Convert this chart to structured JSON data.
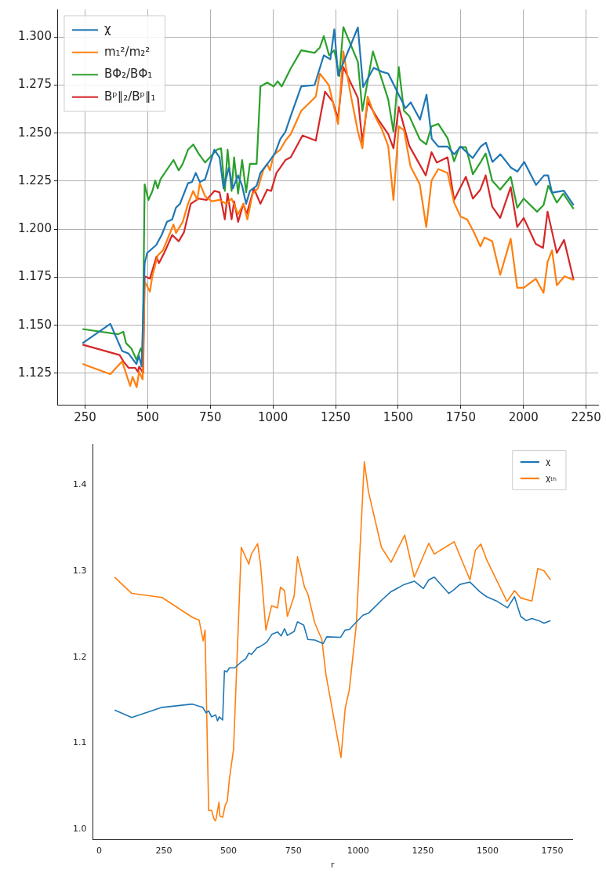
{
  "chart_data": [
    {
      "type": "line",
      "xlim": [
        142,
        2298
      ],
      "ylim": [
        1.1086,
        1.3144
      ],
      "xticks": [
        250,
        500,
        750,
        1000,
        1250,
        1500,
        1750,
        2000,
        2250
      ],
      "yticks": [
        1.125,
        {
          "value": 1.15,
          "label": "1.150"
        },
        1.175,
        {
          "value": 1.2,
          "label": "1.200"
        },
        1.225,
        {
          "value": 1.25,
          "label": "1.250"
        },
        1.275,
        {
          "value": 1.3,
          "label": "1.300"
        }
      ],
      "grid": true,
      "legend": "top left",
      "series": [
        {
          "name": "χ",
          "color": "#1f77b4",
          "x": [
            240,
            351,
            398,
            424,
            455,
            465,
            476,
            488,
            498,
            534,
            556,
            577,
            598,
            613,
            629,
            661,
            677,
            692,
            708,
            729,
            766,
            787,
            803,
            824,
            840,
            861,
            877,
            893,
            908,
            935,
            950,
            982,
            1008,
            1029,
            1050,
            1071,
            1113,
            1166,
            1203,
            1229,
            1245,
            1260,
            1292,
            1339,
            1360,
            1402,
            1434,
            1460,
            1529,
            1550,
            1587,
            1613,
            1634,
            1660,
            1697,
            1723,
            1750,
            1797,
            1829,
            1850,
            1876,
            1908,
            1950,
            1976,
            2003,
            2050,
            2082,
            2098,
            2114,
            2161,
            2200
          ],
          "values": [
            1.1406,
            1.1507,
            1.1366,
            1.1352,
            1.1298,
            1.134,
            1.1285,
            1.1823,
            1.1876,
            1.1917,
            1.197,
            1.2038,
            1.2051,
            1.2112,
            1.2132,
            1.2239,
            1.2246,
            1.2293,
            1.2246,
            1.2259,
            1.2414,
            1.2374,
            1.2212,
            1.232,
            1.2212,
            1.228,
            1.2226,
            1.2132,
            1.2199,
            1.2226,
            1.2293,
            1.2347,
            1.2394,
            1.2468,
            1.2508,
            1.2589,
            1.2743,
            1.275,
            1.2905,
            1.2884,
            1.304,
            1.28,
            1.29,
            1.305,
            1.274,
            1.284,
            1.282,
            1.281,
            1.263,
            1.266,
            1.257,
            1.27,
            1.247,
            1.243,
            1.243,
            1.239,
            1.243,
            1.237,
            1.243,
            1.245,
            1.235,
            1.239,
            1.232,
            1.23,
            1.235,
            1.223,
            1.228,
            1.228,
            1.219,
            1.22,
            1.2125
          ]
        },
        {
          "name": "m₁²/m₂²",
          "color": "#ff7f0e",
          "x": [
            240,
            351,
            398,
            430,
            440,
            456,
            466,
            480,
            488,
            509,
            519,
            540,
            561,
            603,
            613,
            640,
            661,
            682,
            698,
            708,
            729,
            756,
            787,
            814,
            835,
            861,
            882,
            898,
            919,
            940,
            961,
            977,
            988,
            1003,
            1029,
            1050,
            1071,
            1113,
            1171,
            1187,
            1223,
            1260,
            1281,
            1307,
            1339,
            1357,
            1378,
            1407,
            1434,
            1460,
            1481,
            1502,
            1523,
            1549,
            1586,
            1612,
            1633,
            1660,
            1697,
            1723,
            1749,
            1775,
            1802,
            1828,
            1844,
            1875,
            1907,
            1949,
            1975,
            2001,
            2049,
            2080,
            2096,
            2114,
            2133,
            2164,
            2200
          ],
          "values": [
            1.1298,
            1.1245,
            1.1312,
            1.1184,
            1.1231,
            1.1177,
            1.1258,
            1.1218,
            1.1728,
            1.1675,
            1.1757,
            1.1863,
            1.189,
            1.2024,
            1.198,
            1.2038,
            1.2132,
            1.2199,
            1.2152,
            1.2239,
            1.2172,
            1.2145,
            1.2152,
            1.2132,
            1.2159,
            1.2078,
            1.2132,
            1.2051,
            1.2185,
            1.2212,
            1.2306,
            1.234,
            1.2306,
            1.2387,
            1.2414,
            1.2461,
            1.2495,
            1.2616,
            1.269,
            1.281,
            1.275,
            1.2548,
            1.2925,
            1.2723,
            1.2508,
            1.2421,
            1.269,
            1.2589,
            1.2522,
            1.2434,
            1.2152,
            1.2535,
            1.2515,
            1.2327,
            1.2233,
            1.2011,
            1.2253,
            1.2313,
            1.2293,
            1.2138,
            1.2065,
            1.2051,
            1.1984,
            1.191,
            1.1957,
            1.1937,
            1.1762,
            1.195,
            1.1695,
            1.1695,
            1.1742,
            1.1668,
            1.1829,
            1.189,
            1.1708,
            1.1755,
            1.1735
          ]
        },
        {
          "name": "BΦ₂/BΦ₁",
          "color": "#2ca02c",
          "x": [
            240,
            382,
            403,
            414,
            435,
            456,
            472,
            480,
            488,
            503,
            519,
            530,
            540,
            551,
            603,
            624,
            640,
            661,
            682,
            703,
            729,
            777,
            793,
            808,
            819,
            835,
            845,
            861,
            877,
            893,
            908,
            935,
            950,
            977,
            1003,
            1019,
            1035,
            1071,
            1113,
            1166,
            1187,
            1203,
            1224,
            1245,
            1265,
            1281,
            1339,
            1357,
            1399,
            1460,
            1481,
            1502,
            1523,
            1544,
            1586,
            1612,
            1633,
            1660,
            1697,
            1723,
            1744,
            1770,
            1798,
            1828,
            1849,
            1875,
            1907,
            1949,
            1975,
            2001,
            2054,
            2080,
            2099,
            2133,
            2159,
            2200
          ],
          "values": [
            1.148,
            1.1453,
            1.1466,
            1.1406,
            1.1379,
            1.1319,
            1.1379,
            1.1352,
            1.2233,
            1.2152,
            1.2199,
            1.2253,
            1.2212,
            1.2259,
            1.236,
            1.2306,
            1.234,
            1.2414,
            1.2441,
            1.2394,
            1.2347,
            1.2414,
            1.2421,
            1.2199,
            1.2414,
            1.2199,
            1.2374,
            1.2185,
            1.236,
            1.2192,
            1.234,
            1.234,
            1.2743,
            1.2763,
            1.2743,
            1.277,
            1.2743,
            1.2837,
            1.2931,
            1.2918,
            1.2945,
            1.3005,
            1.2905,
            1.2931,
            1.2797,
            1.3052,
            1.2871,
            1.2616,
            1.2925,
            1.2676,
            1.2508,
            1.2844,
            1.2616,
            1.2589,
            1.2468,
            1.2441,
            1.2535,
            1.2548,
            1.2474,
            1.2353,
            1.2427,
            1.2427,
            1.2286,
            1.2347,
            1.2394,
            1.2253,
            1.2206,
            1.2273,
            1.2112,
            1.2159,
            1.2091,
            1.2125,
            1.2226,
            1.2138,
            1.2185,
            1.2105
          ]
        },
        {
          "name": "Bᵖ∥₂/Bᵖ∥₁",
          "color": "#d62728",
          "x": [
            240,
            388,
            403,
            424,
            450,
            461,
            466,
            482,
            488,
            509,
            535,
            545,
            566,
            598,
            624,
            645,
            672,
            703,
            735,
            766,
            787,
            808,
            819,
            835,
            845,
            861,
            882,
            895,
            924,
            950,
            977,
            993,
            1014,
            1029,
            1050,
            1071,
            1118,
            1171,
            1208,
            1239,
            1260,
            1281,
            1339,
            1357,
            1378,
            1418,
            1460,
            1481,
            1502,
            1544,
            1610,
            1633,
            1654,
            1697,
            1723,
            1770,
            1798,
            1828,
            1849,
            1875,
            1907,
            1949,
            1975,
            2001,
            2049,
            2078,
            2096,
            2133,
            2162,
            2200
          ],
          "values": [
            1.1399,
            1.1345,
            1.1312,
            1.1278,
            1.1278,
            1.1258,
            1.1285,
            1.1251,
            1.1755,
            1.1742,
            1.1856,
            1.1823,
            1.1876,
            1.197,
            1.1937,
            1.1984,
            1.2132,
            1.2159,
            1.2152,
            1.2199,
            1.2192,
            1.2051,
            1.2185,
            1.2051,
            1.2145,
            1.2038,
            1.2132,
            1.2078,
            1.2212,
            1.2132,
            1.2206,
            1.2199,
            1.2293,
            1.232,
            1.236,
            1.2374,
            1.2488,
            1.2461,
            1.2716,
            1.2663,
            1.2575,
            1.2844,
            1.2683,
            1.2454,
            1.2663,
            1.2575,
            1.2495,
            1.2421,
            1.2636,
            1.2434,
            1.228,
            1.2401,
            1.2347,
            1.2374,
            1.2152,
            1.2273,
            1.2159,
            1.2206,
            1.228,
            1.2118,
            1.2058,
            1.2219,
            1.2011,
            1.2058,
            1.1923,
            1.1903,
            1.2091,
            1.1876,
            1.1944,
            1.1735
          ]
        }
      ]
    },
    {
      "type": "line",
      "xlabel": "r",
      "xlim": [
        -24,
        1827
      ],
      "ylim": [
        0.988,
        1.447
      ],
      "xticks": [
        0,
        250,
        500,
        750,
        1000,
        1250,
        1500,
        1750
      ],
      "yticks": [
        {
          "value": 1,
          "label": "1.0"
        },
        1.1,
        1.2,
        1.3,
        1.4
      ],
      "legend": "top right",
      "series": [
        {
          "name": "χ",
          "color": "#1f77b4",
          "x": [
            60,
            126,
            243,
            360,
            400,
            413,
            423,
            434,
            450,
            457,
            464,
            477,
            484,
            493,
            503,
            524,
            546,
            567,
            578,
            588,
            610,
            620,
            647,
            668,
            689,
            703,
            716,
            727,
            753,
            766,
            790,
            806,
            833,
            865,
            879,
            932,
            950,
            966,
            1019,
            1040,
            1093,
            1125,
            1178,
            1217,
            1252,
            1273,
            1294,
            1350,
            1369,
            1393,
            1432,
            1469,
            1496,
            1533,
            1577,
            1604,
            1628,
            1649,
            1671,
            1697,
            1718,
            1743
          ],
          "values": [
            1.1386,
            1.13,
            1.1417,
            1.1455,
            1.1417,
            1.1354,
            1.1376,
            1.1307,
            1.133,
            1.126,
            1.1307,
            1.127,
            1.1843,
            1.1827,
            1.1875,
            1.1875,
            1.1937,
            1.1984,
            1.2047,
            1.2031,
            1.211,
            1.212,
            1.2173,
            1.2268,
            1.2293,
            1.2246,
            1.2331,
            1.2252,
            1.2299,
            1.241,
            1.2372,
            1.2205,
            1.2198,
            1.2157,
            1.2236,
            1.223,
            1.2315,
            1.2321,
            1.2488,
            1.251,
            1.2668,
            1.2756,
            1.2844,
            1.2882,
            1.2797,
            1.2898,
            1.2929,
            1.274,
            1.2781,
            1.2844,
            1.2872,
            1.2762,
            1.2702,
            1.2655,
            1.2573,
            1.2702,
            1.2472,
            1.2425,
            1.245,
            1.2425,
            1.2394,
            1.2425
          ]
        },
        {
          "name": "χₜₕ",
          "color": "#ff7f0e",
          "x": [
            60,
            126,
            243,
            360,
            386,
            402,
            409,
            423,
            434,
            445,
            450,
            463,
            466,
            477,
            487,
            495,
            503,
            519,
            549,
            578,
            588,
            612,
            623,
            644,
            666,
            689,
            700,
            716,
            727,
            753,
            766,
            793,
            806,
            833,
            860,
            876,
            934,
            950,
            966,
            993,
            1024,
            1040,
            1090,
            1127,
            1180,
            1217,
            1273,
            1294,
            1371,
            1432,
            1453,
            1474,
            1496,
            1575,
            1604,
            1628,
            1671,
            1694,
            1718,
            1743
          ],
          "values": [
            1.2929,
            1.274,
            1.2693,
            1.2463,
            1.2431,
            1.2189,
            1.2315,
            1.022,
            1.022,
            1.011,
            1.01,
            1.0315,
            1.0157,
            1.014,
            1.0283,
            1.033,
            1.0583,
            1.0929,
            1.3276,
            1.308,
            1.3197,
            1.3317,
            1.3087,
            1.2315,
            1.2598,
            1.2573,
            1.2813,
            1.2772,
            1.2472,
            1.2709,
            1.3165,
            1.2813,
            1.2734,
            1.2394,
            1.2205,
            1.1795,
            1.0835,
            1.1402,
            1.1622,
            1.2378,
            1.4268,
            1.3921,
            1.3276,
            1.3102,
            1.3417,
            1.2929,
            1.3323,
            1.3197,
            1.3339,
            1.2898,
            1.3244,
            1.3313,
            1.3134,
            1.2646,
            1.2772,
            1.2687,
            1.2652,
            1.303,
            1.3002,
            1.2898
          ]
        }
      ]
    }
  ]
}
